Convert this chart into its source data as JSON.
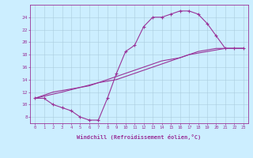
{
  "xlabel": "Windchill (Refroidissement éolien,°C)",
  "bg_color": "#cceeff",
  "line_color": "#993399",
  "grid_color": "#aaccdd",
  "xlim": [
    -0.5,
    23.5
  ],
  "ylim": [
    7,
    26
  ],
  "xticks": [
    0,
    1,
    2,
    3,
    4,
    5,
    6,
    7,
    8,
    9,
    10,
    11,
    12,
    13,
    14,
    15,
    16,
    17,
    18,
    19,
    20,
    21,
    22,
    23
  ],
  "yticks": [
    8,
    10,
    12,
    14,
    16,
    18,
    20,
    22,
    24
  ],
  "series1": [
    [
      0,
      11
    ],
    [
      1,
      11
    ],
    [
      2,
      10
    ],
    [
      3,
      9.5
    ],
    [
      4,
      9
    ],
    [
      5,
      8
    ],
    [
      6,
      7.5
    ],
    [
      7,
      7.5
    ],
    [
      8,
      11
    ],
    [
      9,
      15
    ],
    [
      10,
      18.5
    ],
    [
      11,
      19.5
    ],
    [
      12,
      22.5
    ],
    [
      13,
      24
    ],
    [
      14,
      24
    ],
    [
      15,
      24.5
    ],
    [
      16,
      25
    ],
    [
      17,
      25
    ],
    [
      18,
      24.5
    ],
    [
      19,
      23
    ],
    [
      20,
      21
    ],
    [
      21,
      19
    ],
    [
      22,
      19
    ],
    [
      23,
      19
    ]
  ],
  "series2": [
    [
      0,
      11
    ],
    [
      2,
      12
    ],
    [
      4,
      12.5
    ],
    [
      6,
      13
    ],
    [
      8,
      14
    ],
    [
      10,
      15
    ],
    [
      12,
      16
    ],
    [
      14,
      17
    ],
    [
      16,
      17.5
    ],
    [
      18,
      18.5
    ],
    [
      20,
      19
    ],
    [
      22,
      19
    ],
    [
      23,
      19
    ]
  ],
  "series3": [
    [
      0,
      11
    ],
    [
      3,
      12
    ],
    [
      7,
      13.5
    ],
    [
      9,
      14
    ],
    [
      11,
      15
    ],
    [
      13,
      16
    ],
    [
      15,
      17
    ],
    [
      17,
      18
    ],
    [
      19,
      18.5
    ],
    [
      21,
      19
    ],
    [
      22,
      19
    ],
    [
      23,
      19
    ]
  ]
}
